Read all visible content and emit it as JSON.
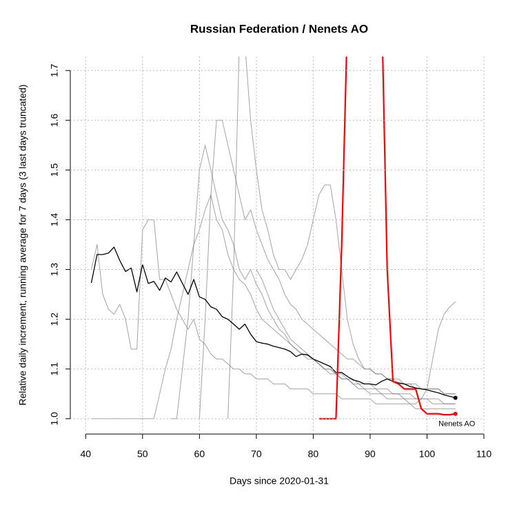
{
  "chart_data": {
    "type": "line",
    "title": "Russian Federation / Nenets AO",
    "xlabel": "Days since 2020-01-31",
    "ylabel": "Relative daily increment, running average for 7 days (3 last days truncated)",
    "annotation": "Nenets AO",
    "xlim": [
      37.3,
      110
    ],
    "ylim": [
      0.972,
      1.728
    ],
    "xticks": [
      40,
      50,
      60,
      70,
      80,
      90,
      100,
      110
    ],
    "yticks": [
      {
        "value": 1,
        "label": "1.0"
      },
      1.1,
      1.2,
      1.3,
      1.4,
      1.5,
      1.6,
      1.7
    ],
    "grid": true,
    "x": [
      41,
      42,
      43,
      44,
      45,
      46,
      47,
      48,
      49,
      50,
      51,
      52,
      53,
      54,
      55,
      56,
      57,
      58,
      59,
      60,
      61,
      62,
      63,
      64,
      65,
      66,
      67,
      68,
      69,
      70,
      71,
      72,
      73,
      74,
      75,
      76,
      77,
      78,
      79,
      80,
      81,
      82,
      83,
      84,
      85,
      86,
      87,
      88,
      89,
      90,
      91,
      92,
      93,
      94,
      95,
      96,
      97,
      98,
      99,
      100,
      101,
      102,
      103,
      104,
      105
    ],
    "series": [
      {
        "color": "#666666",
        "width": 1,
        "opacity": 0.6,
        "values": [
          1.0,
          1.0,
          1.0,
          1.0,
          1.0,
          1.0,
          1.0,
          1.0,
          1.0,
          1.0,
          1.0,
          1.0,
          1.05,
          1.1,
          1.14,
          1.2,
          1.25,
          1.3,
          1.35,
          1.38,
          1.42,
          1.45,
          1.4,
          1.38,
          1.33,
          1.3,
          1.28,
          1.27,
          1.25,
          1.22,
          1.2,
          1.19,
          1.18,
          1.17,
          1.16,
          1.15,
          1.14,
          1.13,
          1.13,
          1.12,
          1.11,
          1.1,
          1.1,
          1.09,
          1.09,
          1.08,
          1.08,
          1.07,
          1.07,
          1.07,
          1.06,
          1.06,
          1.06,
          1.05,
          1.05,
          1.05,
          1.05,
          1.04,
          1.04,
          1.04,
          1.04,
          1.04,
          1.03,
          1.03,
          1.03
        ]
      },
      {
        "color": "#666666",
        "width": 1,
        "opacity": 0.6,
        "values": [
          null,
          null,
          null,
          null,
          null,
          null,
          null,
          null,
          null,
          null,
          null,
          null,
          null,
          null,
          1.0,
          1.0,
          1.1,
          1.2,
          1.35,
          1.5,
          1.55,
          1.5,
          1.45,
          1.4,
          1.38,
          1.35,
          1.3,
          1.28,
          1.3,
          1.27,
          1.25,
          1.22,
          1.2,
          1.18,
          1.17,
          1.15,
          1.14,
          1.13,
          1.12,
          1.12,
          1.11,
          1.1,
          1.09,
          1.09,
          1.08,
          1.08,
          1.07,
          1.07,
          1.06,
          1.06,
          1.06,
          1.05,
          1.05,
          1.05,
          1.05,
          1.04,
          1.04,
          1.04,
          1.04,
          1.04,
          1.03,
          1.03,
          1.03,
          1.03,
          1.03
        ]
      },
      {
        "color": "#666666",
        "width": 1,
        "opacity": 0.6,
        "values": [
          null,
          null,
          null,
          null,
          null,
          null,
          null,
          null,
          null,
          null,
          null,
          null,
          null,
          null,
          null,
          null,
          null,
          null,
          null,
          1.0,
          1.2,
          1.45,
          1.6,
          1.6,
          1.55,
          1.5,
          1.45,
          1.4,
          1.42,
          1.38,
          1.35,
          1.32,
          1.3,
          1.28,
          1.25,
          1.23,
          1.22,
          1.2,
          1.19,
          1.18,
          1.17,
          1.16,
          1.15,
          1.14,
          1.13,
          1.12,
          1.12,
          1.11,
          1.1,
          1.1,
          1.09,
          1.09,
          1.08,
          1.08,
          1.08,
          1.07,
          1.07,
          1.07,
          1.06,
          1.06,
          1.06,
          1.06,
          1.05,
          1.05,
          1.05
        ]
      },
      {
        "color": "#666666",
        "width": 1,
        "opacity": 0.6,
        "values": [
          null,
          null,
          null,
          null,
          null,
          null,
          null,
          null,
          null,
          null,
          null,
          null,
          null,
          null,
          null,
          null,
          null,
          null,
          null,
          null,
          null,
          null,
          null,
          null,
          null,
          null,
          null,
          null,
          null,
          1.3,
          1.28,
          1.25,
          1.22,
          1.2,
          1.18,
          1.16,
          1.15,
          1.14,
          1.13,
          1.12,
          1.11,
          1.1,
          1.1,
          1.09,
          1.08,
          1.08,
          1.07,
          1.06,
          1.06,
          1.05,
          1.05,
          1.05,
          1.04,
          1.04,
          1.04,
          1.04,
          1.03,
          1.03,
          1.04,
          1.06,
          1.12,
          1.18,
          1.21,
          1.225,
          1.235
        ]
      },
      {
        "color": "#666666",
        "width": 1,
        "opacity": 0.6,
        "values": [
          1.3,
          1.35,
          1.25,
          1.22,
          1.21,
          1.23,
          1.2,
          1.14,
          1.14,
          1.38,
          1.4,
          1.4,
          1.28,
          1.28,
          1.25,
          1.22,
          1.2,
          1.18,
          1.2,
          1.16,
          1.15,
          1.13,
          1.12,
          1.12,
          1.11,
          1.1,
          1.1,
          1.09,
          1.09,
          1.08,
          1.08,
          1.08,
          1.07,
          1.07,
          1.07,
          1.06,
          1.06,
          1.06,
          1.06,
          1.05,
          1.05,
          1.05,
          1.05,
          1.05,
          1.04,
          1.04,
          1.04,
          1.04,
          1.04,
          1.04,
          1.03,
          1.03,
          1.03,
          1.03,
          1.03,
          1.03,
          1.03,
          1.02,
          1.02,
          1.02,
          1.02,
          1.02,
          1.02,
          1.02,
          1.02
        ]
      },
      {
        "color": "#666666",
        "width": 1,
        "opacity": 0.6,
        "values": [
          null,
          null,
          null,
          null,
          null,
          null,
          null,
          null,
          null,
          null,
          null,
          null,
          null,
          null,
          null,
          null,
          null,
          null,
          null,
          null,
          null,
          null,
          null,
          null,
          1.0,
          1.3,
          1.75,
          1.75,
          1.6,
          1.5,
          1.42,
          1.38,
          1.33,
          1.3,
          1.3,
          1.28,
          1.3,
          1.32,
          1.35,
          1.4,
          1.45,
          1.47,
          1.47,
          1.4,
          1.3,
          1.2,
          1.15,
          1.12,
          1.1,
          1.1,
          1.09,
          1.09,
          1.08,
          1.08,
          1.07,
          1.07,
          1.07,
          1.06,
          1.06,
          1.06,
          1.06,
          1.06,
          1.05,
          1.05,
          1.05
        ]
      },
      {
        "color": "#000000",
        "width": 1.3,
        "opacity": 1,
        "marker_end": true,
        "values": [
          1.273,
          1.33,
          1.33,
          1.333,
          1.345,
          1.318,
          1.296,
          1.303,
          1.255,
          1.31,
          1.272,
          1.276,
          1.258,
          1.283,
          1.275,
          1.295,
          1.272,
          1.25,
          1.28,
          1.245,
          1.24,
          1.225,
          1.22,
          1.205,
          1.2,
          1.19,
          1.18,
          1.19,
          1.17,
          1.155,
          1.152,
          1.15,
          1.146,
          1.143,
          1.14,
          1.135,
          1.125,
          1.13,
          1.128,
          1.12,
          1.115,
          1.11,
          1.105,
          1.093,
          1.093,
          1.085,
          1.078,
          1.075,
          1.07,
          1.07,
          1.068,
          1.075,
          1.08,
          1.075,
          1.072,
          1.07,
          1.065,
          1.062,
          1.06,
          1.058,
          1.055,
          1.052,
          1.048,
          1.045,
          1.042
        ]
      },
      {
        "color": "#ff0000",
        "width": 2.2,
        "opacity": 1,
        "marker_end": true,
        "label_end": true,
        "values": [
          null,
          null,
          null,
          null,
          null,
          null,
          null,
          null,
          null,
          null,
          null,
          null,
          null,
          null,
          null,
          null,
          null,
          null,
          null,
          null,
          null,
          null,
          null,
          null,
          null,
          null,
          null,
          null,
          null,
          null,
          null,
          null,
          null,
          null,
          null,
          null,
          null,
          null,
          null,
          null,
          1.0,
          1.0,
          1.0,
          1.0,
          1.35,
          1.8,
          null,
          null,
          null,
          null,
          null,
          1.85,
          1.3,
          1.075,
          1.07,
          1.06,
          1.06,
          1.06,
          1.02,
          1.01,
          1.01,
          1.01,
          1.008,
          1.008,
          1.01
        ]
      }
    ]
  }
}
